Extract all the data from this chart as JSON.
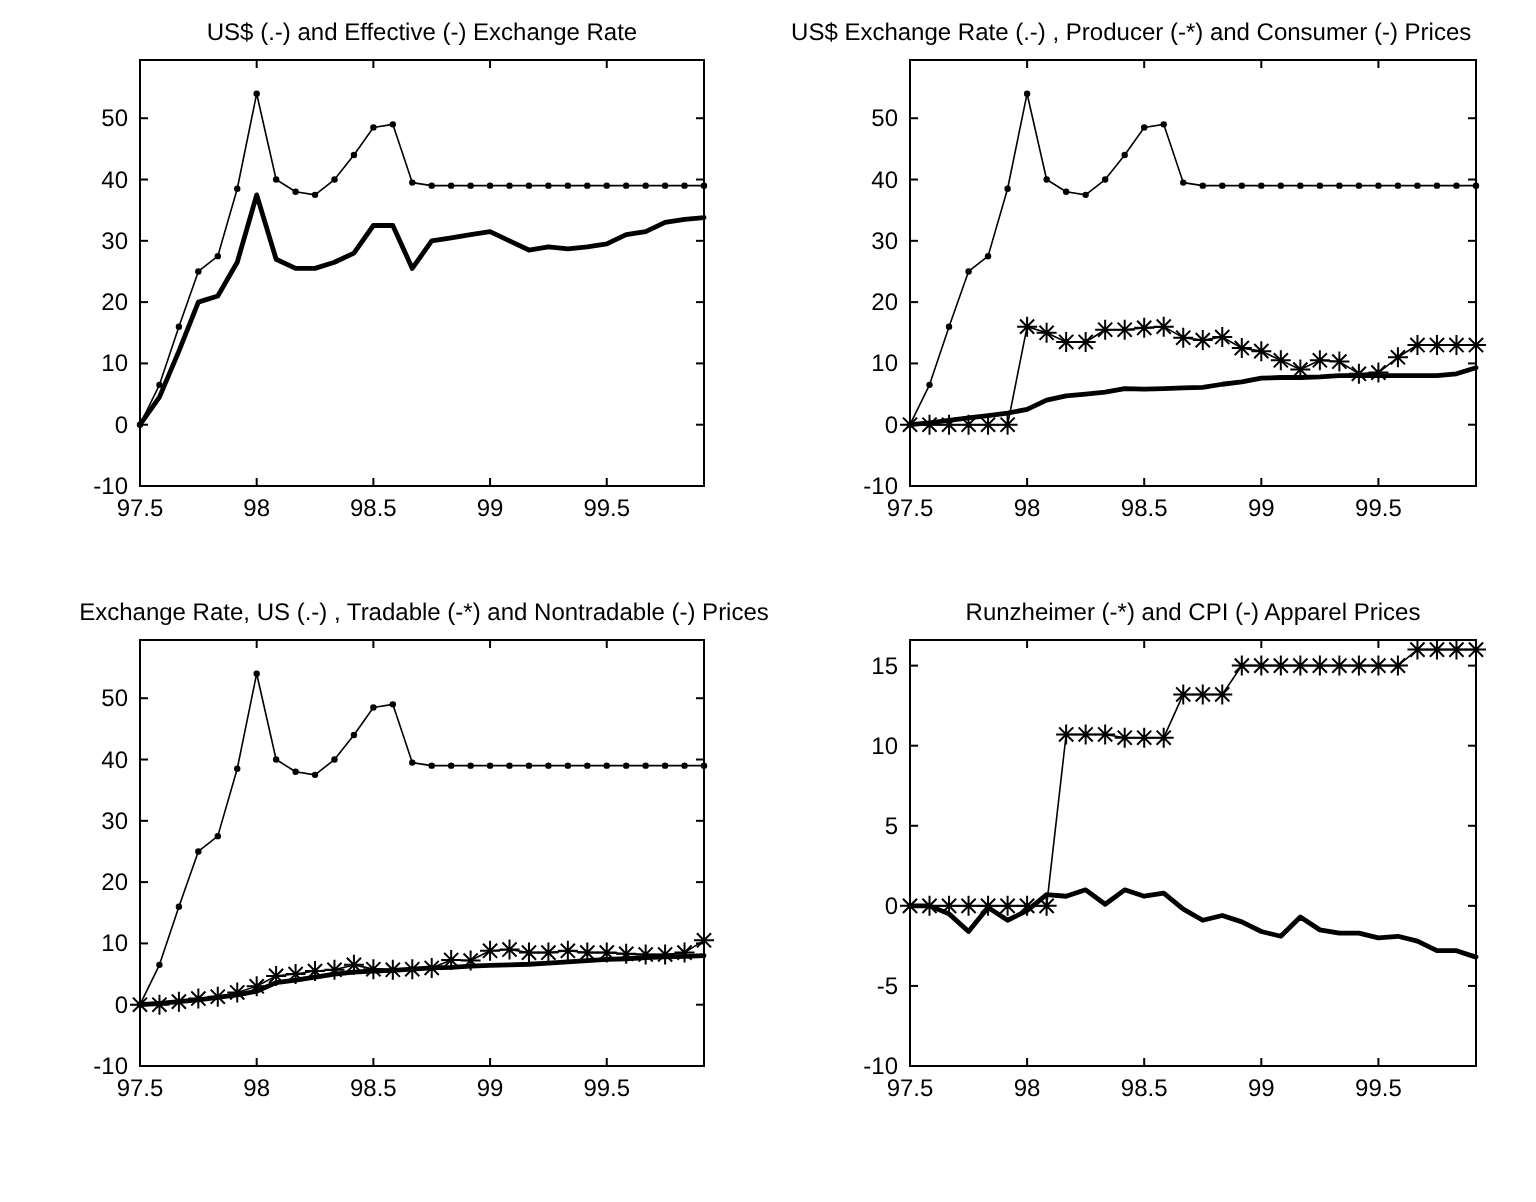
{
  "chart_data": [
    {
      "type": "line",
      "title": "US$ (.-) and Effective (-) Exchange Rate",
      "x": [
        97.5,
        97.5833,
        97.6667,
        97.75,
        97.8333,
        97.9167,
        98,
        98.0833,
        98.1667,
        98.25,
        98.3333,
        98.4167,
        98.5,
        98.5833,
        98.6667,
        98.75,
        98.8333,
        98.9167,
        99,
        99.0833,
        99.1667,
        99.25,
        99.3333,
        99.4167,
        99.5,
        99.5833,
        99.6667,
        99.75,
        99.8333,
        99.9167
      ],
      "xlim": [
        97.5,
        99.9167
      ],
      "xticks": [
        97.5,
        98,
        98.5,
        99,
        99.5
      ],
      "ylim": [
        -10,
        59.5
      ],
      "yticks": [
        -10,
        0,
        10,
        20,
        30,
        40,
        50
      ],
      "series": [
        {
          "color": "#000000",
          "marker": "circle",
          "values": [
            0,
            6.5,
            16,
            25,
            27.5,
            38.5,
            54,
            40,
            38,
            37.5,
            40,
            44,
            48.5,
            49,
            39.5,
            39,
            39,
            39,
            39,
            39,
            39,
            39,
            39,
            39,
            39,
            39,
            39,
            39,
            39,
            39
          ]
        },
        {
          "color": "#000000",
          "marker": "none",
          "values": [
            0,
            4.5,
            12,
            20,
            21,
            26.5,
            37.5,
            27,
            25.5,
            25.5,
            26.5,
            28,
            32.5,
            32.5,
            25.5,
            30,
            30.5,
            31,
            31.5,
            30,
            28.5,
            29,
            28.7,
            29,
            29.5,
            31,
            31.5,
            33,
            33.5,
            33.8
          ]
        }
      ]
    },
    {
      "type": "line",
      "title": "US$ Exchange Rate (.-) , Producer (-*) and Consumer (-) Prices",
      "x": [
        97.5,
        97.5833,
        97.6667,
        97.75,
        97.8333,
        97.9167,
        98,
        98.0833,
        98.1667,
        98.25,
        98.3333,
        98.4167,
        98.5,
        98.5833,
        98.6667,
        98.75,
        98.8333,
        98.9167,
        99,
        99.0833,
        99.1667,
        99.25,
        99.3333,
        99.4167,
        99.5,
        99.5833,
        99.6667,
        99.75,
        99.8333,
        99.9167
      ],
      "xlim": [
        97.5,
        99.9167
      ],
      "xticks": [
        97.5,
        98,
        98.5,
        99,
        99.5
      ],
      "ylim": [
        -10,
        59.5
      ],
      "yticks": [
        -10,
        0,
        10,
        20,
        30,
        40,
        50
      ],
      "series": [
        {
          "color": "#000000",
          "marker": "circle",
          "values": [
            0,
            6.5,
            16,
            25,
            27.5,
            38.5,
            54,
            40,
            38,
            37.5,
            40,
            44,
            48.5,
            49,
            39.5,
            39,
            39,
            39,
            39,
            39,
            39,
            39,
            39,
            39,
            39,
            39,
            39,
            39,
            39,
            39
          ]
        },
        {
          "color": "#000000",
          "marker": "cross",
          "values": [
            0,
            0,
            0,
            0,
            0,
            0,
            16,
            15,
            13.5,
            13.5,
            15.5,
            15.5,
            15.8,
            16,
            14.2,
            13.8,
            14.3,
            12.5,
            12,
            10.5,
            9,
            10.5,
            10.3,
            8.3,
            8.5,
            11,
            13,
            13,
            13,
            13
          ]
        },
        {
          "color": "#000000",
          "marker": "none",
          "values": [
            0,
            0.3,
            0.7,
            1.1,
            1.5,
            1.9,
            2.5,
            4,
            4.7,
            5,
            5.3,
            5.9,
            5.8,
            5.9,
            6,
            6.1,
            6.6,
            7,
            7.6,
            7.7,
            7.7,
            7.8,
            8,
            8,
            8,
            8,
            8,
            8,
            8.3,
            9.3
          ]
        }
      ]
    },
    {
      "type": "line",
      "title": "Exchange Rate, US (.-) , Tradable (-*) and Nontradable (-) Prices",
      "x": [
        97.5,
        97.5833,
        97.6667,
        97.75,
        97.8333,
        97.9167,
        98,
        98.0833,
        98.1667,
        98.25,
        98.3333,
        98.4167,
        98.5,
        98.5833,
        98.6667,
        98.75,
        98.8333,
        98.9167,
        99,
        99.0833,
        99.1667,
        99.25,
        99.3333,
        99.4167,
        99.5,
        99.5833,
        99.6667,
        99.75,
        99.8333,
        99.9167
      ],
      "xlim": [
        97.5,
        99.9167
      ],
      "xticks": [
        97.5,
        98,
        98.5,
        99,
        99.5
      ],
      "ylim": [
        -10,
        59.5
      ],
      "yticks": [
        -10,
        0,
        10,
        20,
        30,
        40,
        50
      ],
      "series": [
        {
          "color": "#000000",
          "marker": "circle",
          "values": [
            0,
            6.5,
            16,
            25,
            27.5,
            38.5,
            54,
            40,
            38,
            37.5,
            40,
            44,
            48.5,
            49,
            39.5,
            39,
            39,
            39,
            39,
            39,
            39,
            39,
            39,
            39,
            39,
            39,
            39,
            39,
            39,
            39
          ]
        },
        {
          "color": "#000000",
          "marker": "cross",
          "values": [
            0,
            0,
            0.5,
            1,
            1.3,
            2,
            3,
            4.7,
            5,
            5.5,
            5.7,
            6.5,
            5.8,
            5.7,
            5.8,
            6,
            7.3,
            7.2,
            8.8,
            9,
            8.5,
            8.5,
            8.8,
            8.5,
            8.5,
            8.3,
            8.2,
            8.2,
            8.5,
            10.5
          ]
        },
        {
          "color": "#000000",
          "marker": "none",
          "values": [
            0,
            0.2,
            0.5,
            0.8,
            1.2,
            1.6,
            2.2,
            3.6,
            4,
            4.5,
            5,
            5.3,
            5.5,
            5.6,
            5.8,
            6,
            6.1,
            6.3,
            6.4,
            6.5,
            6.6,
            6.8,
            7,
            7.2,
            7.4,
            7.5,
            7.7,
            7.8,
            7.9,
            8
          ]
        }
      ]
    },
    {
      "type": "line",
      "title": "Runzheimer (-*) and CPI (-) Apparel Prices",
      "x": [
        97.5,
        97.5833,
        97.6667,
        97.75,
        97.8333,
        97.9167,
        98,
        98.0833,
        98.1667,
        98.25,
        98.3333,
        98.4167,
        98.5,
        98.5833,
        98.6667,
        98.75,
        98.8333,
        98.9167,
        99,
        99.0833,
        99.1667,
        99.25,
        99.3333,
        99.4167,
        99.5,
        99.5833,
        99.6667,
        99.75,
        99.8333,
        99.9167
      ],
      "xlim": [
        97.5,
        99.9167
      ],
      "xticks": [
        97.5,
        98,
        98.5,
        99,
        99.5
      ],
      "ylim": [
        -10,
        16.6
      ],
      "yticks": [
        -10,
        -5,
        0,
        5,
        10,
        15
      ],
      "series": [
        {
          "color": "#000000",
          "marker": "cross",
          "values": [
            0,
            0,
            0,
            0,
            0,
            0,
            0,
            0,
            10.7,
            10.7,
            10.7,
            10.5,
            10.5,
            10.5,
            13.2,
            13.2,
            13.2,
            15,
            15,
            15,
            15,
            15,
            15,
            15,
            15,
            15,
            16,
            16,
            16,
            16
          ]
        },
        {
          "color": "#000000",
          "marker": "none",
          "values": [
            0,
            0,
            -0.5,
            -1.6,
            -0.1,
            -0.9,
            -0.3,
            0.7,
            0.6,
            1,
            0.1,
            1,
            0.6,
            0.8,
            -0.2,
            -0.9,
            -0.6,
            -1,
            -1.6,
            -1.9,
            -0.7,
            -1.5,
            -1.7,
            -1.7,
            -2,
            -1.9,
            -2.2,
            -2.8,
            -2.8,
            -3.2
          ]
        }
      ]
    }
  ]
}
